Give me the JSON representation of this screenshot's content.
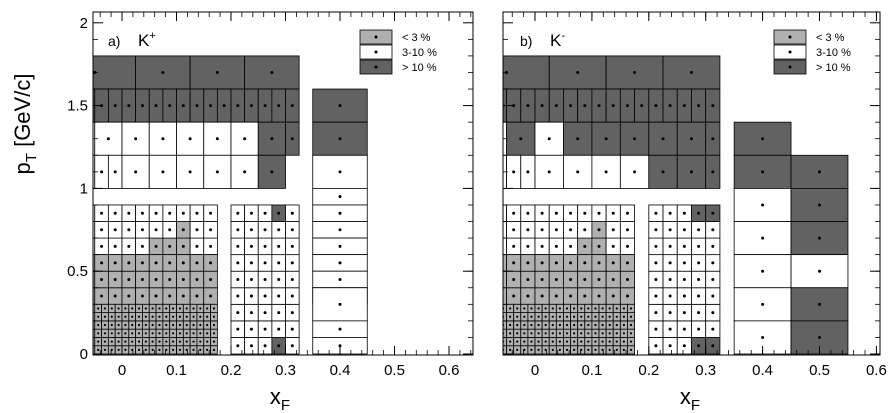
{
  "figure": {
    "ylabel_main": "p",
    "ylabel_sub": "T",
    "ylabel_unit": " [GeV/c]",
    "xlabel_main": "x",
    "xlabel_sub": "F"
  },
  "colors": {
    "low": "#b0b0b0",
    "mid": "#ffffff",
    "high": "#626262"
  },
  "chart_data": [
    {
      "type": "heatmap",
      "panel_label": "a)",
      "particle": "K",
      "charge": "+",
      "xlim": [
        -0.1,
        0.6
      ],
      "ylim": [
        0,
        2.05
      ],
      "xticks": [
        "0",
        "0.1",
        "0.2",
        "0.3",
        "0.4",
        "0.5",
        "0.6"
      ],
      "yticks": [
        "0",
        "0.5",
        "1",
        "1.5",
        "2"
      ],
      "legend": [
        {
          "label": "< 3 %",
          "class": "low"
        },
        {
          "label": "3-10 %",
          "class": "mid"
        },
        {
          "label": "> 10 %",
          "class": "high"
        }
      ],
      "cells": [
        [
          -0.125,
          0.025,
          1.6,
          1.8,
          "high"
        ],
        [
          0.025,
          0.125,
          1.6,
          1.8,
          "high"
        ],
        [
          0.125,
          0.225,
          1.6,
          1.8,
          "high"
        ],
        [
          0.225,
          0.325,
          1.6,
          1.8,
          "high"
        ],
        [
          -0.125,
          -0.1,
          1.4,
          1.6,
          "high"
        ],
        [
          -0.1,
          -0.075,
          1.4,
          1.6,
          "high"
        ],
        [
          -0.075,
          -0.05,
          1.4,
          1.6,
          "high"
        ],
        [
          -0.05,
          -0.025,
          1.4,
          1.6,
          "high"
        ],
        [
          -0.025,
          0.0,
          1.4,
          1.6,
          "high"
        ],
        [
          0.0,
          0.025,
          1.4,
          1.6,
          "high"
        ],
        [
          0.025,
          0.05,
          1.4,
          1.6,
          "high"
        ],
        [
          0.05,
          0.075,
          1.4,
          1.6,
          "high"
        ],
        [
          0.075,
          0.1,
          1.4,
          1.6,
          "high"
        ],
        [
          0.1,
          0.125,
          1.4,
          1.6,
          "high"
        ],
        [
          0.125,
          0.15,
          1.4,
          1.6,
          "high"
        ],
        [
          0.15,
          0.175,
          1.4,
          1.6,
          "high"
        ],
        [
          0.175,
          0.2,
          1.4,
          1.6,
          "high"
        ],
        [
          0.2,
          0.225,
          1.4,
          1.6,
          "high"
        ],
        [
          0.225,
          0.25,
          1.4,
          1.6,
          "high"
        ],
        [
          0.25,
          0.275,
          1.4,
          1.6,
          "high"
        ],
        [
          0.275,
          0.3,
          1.4,
          1.6,
          "high"
        ],
        [
          0.3,
          0.325,
          1.4,
          1.6,
          "high"
        ],
        [
          -0.1,
          -0.05,
          1.2,
          1.4,
          "mid"
        ],
        [
          -0.05,
          0.0,
          1.2,
          1.4,
          "mid"
        ],
        [
          0.0,
          0.05,
          1.2,
          1.4,
          "mid"
        ],
        [
          0.05,
          0.1,
          1.2,
          1.4,
          "mid"
        ],
        [
          0.1,
          0.15,
          1.2,
          1.4,
          "mid"
        ],
        [
          0.15,
          0.2,
          1.2,
          1.4,
          "mid"
        ],
        [
          0.2,
          0.25,
          1.2,
          1.4,
          "mid"
        ],
        [
          0.25,
          0.3,
          1.2,
          1.4,
          "high"
        ],
        [
          0.3,
          0.325,
          1.2,
          1.4,
          "high"
        ],
        [
          -0.1,
          -0.075,
          1.0,
          1.2,
          "mid"
        ],
        [
          -0.075,
          -0.05,
          1.0,
          1.2,
          "mid"
        ],
        [
          -0.05,
          -0.025,
          1.0,
          1.2,
          "mid"
        ],
        [
          -0.025,
          0.0,
          1.0,
          1.2,
          "mid"
        ],
        [
          0.0,
          0.05,
          1.0,
          1.2,
          "mid"
        ],
        [
          0.05,
          0.1,
          1.0,
          1.2,
          "mid"
        ],
        [
          0.1,
          0.15,
          1.0,
          1.2,
          "mid"
        ],
        [
          0.15,
          0.2,
          1.0,
          1.2,
          "mid"
        ],
        [
          0.2,
          0.25,
          1.0,
          1.2,
          "mid"
        ],
        [
          0.25,
          0.3,
          1.0,
          1.2,
          "high"
        ],
        [
          0.35,
          0.45,
          1.4,
          1.6,
          "high"
        ],
        [
          0.35,
          0.45,
          1.2,
          1.4,
          "high"
        ],
        [
          0.35,
          0.45,
          1.0,
          1.2,
          "mid"
        ],
        [
          0.35,
          0.45,
          0.9,
          1.0,
          "mid"
        ],
        [
          0.35,
          0.45,
          0.8,
          0.9,
          "mid"
        ],
        [
          0.35,
          0.45,
          0.7,
          0.8,
          "mid"
        ],
        [
          0.35,
          0.45,
          0.6,
          0.7,
          "mid"
        ],
        [
          0.35,
          0.45,
          0.5,
          0.6,
          "mid"
        ],
        [
          0.35,
          0.45,
          0.4,
          0.5,
          "mid"
        ],
        [
          0.35,
          0.45,
          0.3,
          0.4,
          "mid"
        ],
        [
          0.35,
          0.45,
          0.2,
          0.4,
          "mid"
        ],
        [
          0.35,
          0.45,
          0.1,
          0.2,
          "mid"
        ],
        [
          0.35,
          0.45,
          0.0,
          0.1,
          "mid"
        ]
      ],
      "grid_groups": [
        {
          "x0": -0.1,
          "x1": 0.175,
          "nx": 11,
          "y0": 0.6,
          "y1": 0.9,
          "ny": 3,
          "fill": "mid"
        },
        {
          "x0": -0.1,
          "x1": 0.175,
          "nx": 11,
          "y0": 0.3,
          "y1": 0.6,
          "ny": 3,
          "fill": "mid"
        },
        {
          "x0": 0.2,
          "x1": 0.325,
          "nx": 5,
          "y0": 0.0,
          "y1": 0.9,
          "ny": 9,
          "fill": "mid"
        },
        {
          "x0": -0.1,
          "x1": 0.175,
          "nx": 22,
          "y0": 0.0,
          "y1": 0.3,
          "ny": 6,
          "fill": "mid"
        }
      ],
      "overrides": [
        [
          -0.075,
          0.0,
          0.3,
          0.55,
          "low"
        ],
        [
          0.0,
          0.175,
          0.3,
          0.6,
          "low"
        ],
        [
          0.05,
          0.125,
          0.6,
          0.7,
          "low"
        ],
        [
          0.1,
          0.125,
          0.7,
          0.8,
          "low"
        ],
        [
          -0.075,
          0.175,
          0.0,
          0.3,
          "low"
        ],
        [
          0.275,
          0.3,
          0.8,
          0.9,
          "high"
        ],
        [
          0.275,
          0.3,
          0.0,
          0.1,
          "high"
        ]
      ]
    },
    {
      "type": "heatmap",
      "panel_label": "b)",
      "particle": "K",
      "charge": "-",
      "xlim": [
        -0.1,
        0.6
      ],
      "ylim": [
        0,
        2.05
      ],
      "xticks": [
        "0",
        "0.1",
        "0.2",
        "0.3",
        "0.4",
        "0.5",
        "0.6"
      ],
      "yticks": [],
      "legend": [
        {
          "label": "< 3 %",
          "class": "low"
        },
        {
          "label": "3-10 %",
          "class": "mid"
        },
        {
          "label": "> 10 %",
          "class": "high"
        }
      ],
      "cells": [
        [
          -0.125,
          0.025,
          1.6,
          1.8,
          "high"
        ],
        [
          0.025,
          0.125,
          1.6,
          1.8,
          "high"
        ],
        [
          0.125,
          0.225,
          1.6,
          1.8,
          "high"
        ],
        [
          0.225,
          0.325,
          1.6,
          1.8,
          "high"
        ],
        [
          -0.125,
          -0.1,
          1.4,
          1.6,
          "high"
        ],
        [
          -0.1,
          -0.075,
          1.4,
          1.6,
          "high"
        ],
        [
          -0.075,
          -0.05,
          1.4,
          1.6,
          "high"
        ],
        [
          -0.05,
          -0.025,
          1.4,
          1.6,
          "high"
        ],
        [
          -0.025,
          0.0,
          1.4,
          1.6,
          "high"
        ],
        [
          0.0,
          0.025,
          1.4,
          1.6,
          "high"
        ],
        [
          0.025,
          0.05,
          1.4,
          1.6,
          "high"
        ],
        [
          0.05,
          0.075,
          1.4,
          1.6,
          "high"
        ],
        [
          0.075,
          0.1,
          1.4,
          1.6,
          "high"
        ],
        [
          0.1,
          0.125,
          1.4,
          1.6,
          "high"
        ],
        [
          0.125,
          0.15,
          1.4,
          1.6,
          "high"
        ],
        [
          0.15,
          0.175,
          1.4,
          1.6,
          "high"
        ],
        [
          0.175,
          0.2,
          1.4,
          1.6,
          "high"
        ],
        [
          0.2,
          0.225,
          1.4,
          1.6,
          "high"
        ],
        [
          0.225,
          0.25,
          1.4,
          1.6,
          "high"
        ],
        [
          0.25,
          0.275,
          1.4,
          1.6,
          "high"
        ],
        [
          0.275,
          0.3,
          1.4,
          1.6,
          "high"
        ],
        [
          0.3,
          0.325,
          1.4,
          1.6,
          "high"
        ],
        [
          -0.1,
          -0.05,
          1.2,
          1.4,
          "mid"
        ],
        [
          -0.05,
          0.0,
          1.2,
          1.4,
          "high"
        ],
        [
          0.0,
          0.05,
          1.2,
          1.4,
          "mid"
        ],
        [
          0.05,
          0.1,
          1.2,
          1.4,
          "high"
        ],
        [
          0.1,
          0.15,
          1.2,
          1.4,
          "high"
        ],
        [
          0.15,
          0.2,
          1.2,
          1.4,
          "high"
        ],
        [
          0.2,
          0.25,
          1.2,
          1.4,
          "high"
        ],
        [
          0.25,
          0.3,
          1.2,
          1.4,
          "high"
        ],
        [
          0.3,
          0.325,
          1.2,
          1.4,
          "high"
        ],
        [
          -0.1,
          -0.075,
          1.0,
          1.2,
          "mid"
        ],
        [
          -0.075,
          -0.05,
          1.0,
          1.2,
          "mid"
        ],
        [
          -0.05,
          -0.025,
          1.0,
          1.2,
          "mid"
        ],
        [
          -0.025,
          0.0,
          1.0,
          1.2,
          "mid"
        ],
        [
          0.0,
          0.05,
          1.0,
          1.2,
          "mid"
        ],
        [
          0.05,
          0.1,
          1.0,
          1.2,
          "mid"
        ],
        [
          0.1,
          0.15,
          1.0,
          1.2,
          "mid"
        ],
        [
          0.15,
          0.2,
          1.0,
          1.2,
          "mid"
        ],
        [
          0.2,
          0.25,
          1.0,
          1.2,
          "high"
        ],
        [
          0.25,
          0.3,
          1.0,
          1.2,
          "high"
        ],
        [
          0.3,
          0.325,
          1.0,
          1.2,
          "high"
        ],
        [
          0.35,
          0.45,
          1.2,
          1.4,
          "high"
        ],
        [
          0.35,
          0.45,
          1.0,
          1.2,
          "high"
        ],
        [
          0.45,
          0.55,
          1.0,
          1.2,
          "high"
        ],
        [
          0.35,
          0.45,
          0.8,
          1.0,
          "mid"
        ],
        [
          0.45,
          0.55,
          0.8,
          1.0,
          "high"
        ],
        [
          0.35,
          0.45,
          0.6,
          0.8,
          "mid"
        ],
        [
          0.45,
          0.55,
          0.6,
          0.8,
          "high"
        ],
        [
          0.35,
          0.45,
          0.4,
          0.6,
          "mid"
        ],
        [
          0.45,
          0.55,
          0.4,
          0.6,
          "mid"
        ],
        [
          0.35,
          0.45,
          0.2,
          0.4,
          "mid"
        ],
        [
          0.45,
          0.55,
          0.2,
          0.4,
          "high"
        ],
        [
          0.35,
          0.45,
          0.0,
          0.2,
          "mid"
        ],
        [
          0.45,
          0.55,
          0.0,
          0.2,
          "high"
        ]
      ],
      "grid_groups": [
        {
          "x0": -0.1,
          "x1": 0.175,
          "nx": 11,
          "y0": 0.6,
          "y1": 0.9,
          "ny": 3,
          "fill": "mid"
        },
        {
          "x0": -0.1,
          "x1": 0.175,
          "nx": 11,
          "y0": 0.3,
          "y1": 0.6,
          "ny": 3,
          "fill": "mid"
        },
        {
          "x0": 0.2,
          "x1": 0.325,
          "nx": 5,
          "y0": 0.0,
          "y1": 0.9,
          "ny": 9,
          "fill": "mid"
        },
        {
          "x0": -0.1,
          "x1": 0.175,
          "nx": 22,
          "y0": 0.0,
          "y1": 0.3,
          "ny": 6,
          "fill": "mid"
        }
      ],
      "overrides": [
        [
          -0.075,
          0.0,
          0.3,
          0.55,
          "low"
        ],
        [
          0.0,
          0.175,
          0.3,
          0.6,
          "low"
        ],
        [
          0.075,
          0.125,
          0.6,
          0.7,
          "low"
        ],
        [
          0.1,
          0.125,
          0.7,
          0.8,
          "low"
        ],
        [
          -0.075,
          0.175,
          0.0,
          0.3,
          "low"
        ],
        [
          0.275,
          0.325,
          0.8,
          0.9,
          "high"
        ],
        [
          0.275,
          0.325,
          0.0,
          0.1,
          "high"
        ]
      ]
    }
  ]
}
